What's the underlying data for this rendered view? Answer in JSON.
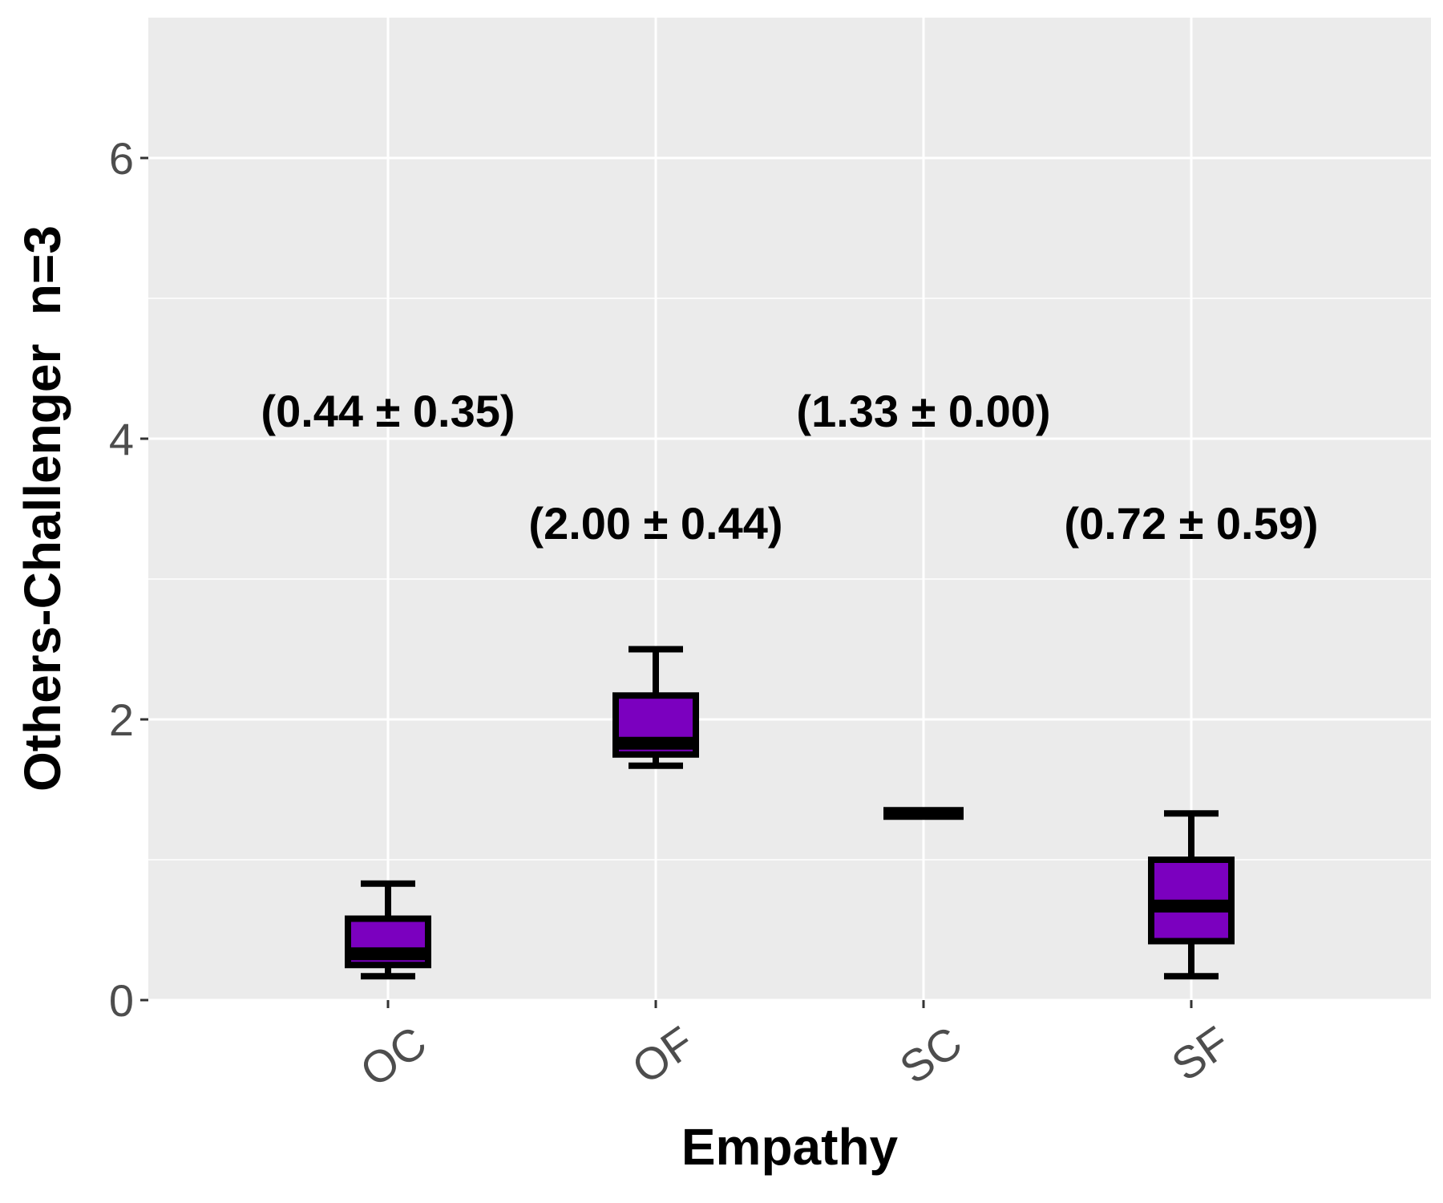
{
  "chart_data": {
    "type": "boxplot",
    "title": "",
    "xlabel": "Empathy",
    "ylabel": "Others-Challenger  n=3",
    "ylim": [
      0,
      7
    ],
    "yticks": [
      0,
      2,
      4,
      6
    ],
    "grid": true,
    "categories": [
      "OC",
      "OF",
      "SC",
      "SF"
    ],
    "boxes": [
      {
        "category": "OC",
        "min": 0.17,
        "q1": 0.25,
        "median": 0.33,
        "q3": 0.58,
        "max": 0.83
      },
      {
        "category": "OF",
        "min": 1.67,
        "q1": 1.75,
        "median": 1.83,
        "q3": 2.17,
        "max": 2.5
      },
      {
        "category": "SC",
        "min": 1.33,
        "q1": 1.33,
        "median": 1.33,
        "q3": 1.33,
        "max": 1.33
      },
      {
        "category": "SF",
        "min": 0.17,
        "q1": 0.42,
        "median": 0.67,
        "q3": 1.0,
        "max": 1.33
      }
    ],
    "annotations": [
      {
        "category": "OC",
        "text": "(0.44 ± 0.35)",
        "y": 4.2
      },
      {
        "category": "OF",
        "text": "(2.00 ± 0.44)",
        "y": 3.4
      },
      {
        "category": "SC",
        "text": "(1.33 ± 0.00)",
        "y": 4.2
      },
      {
        "category": "SF",
        "text": "(0.72 ± 0.59)",
        "y": 3.4
      }
    ],
    "colors": {
      "box_fill": "#7b00bf",
      "box_stroke": "#000000",
      "panel_bg": "#ebebeb",
      "grid": "#ffffff",
      "tick_text": "#4d4d4d"
    }
  }
}
